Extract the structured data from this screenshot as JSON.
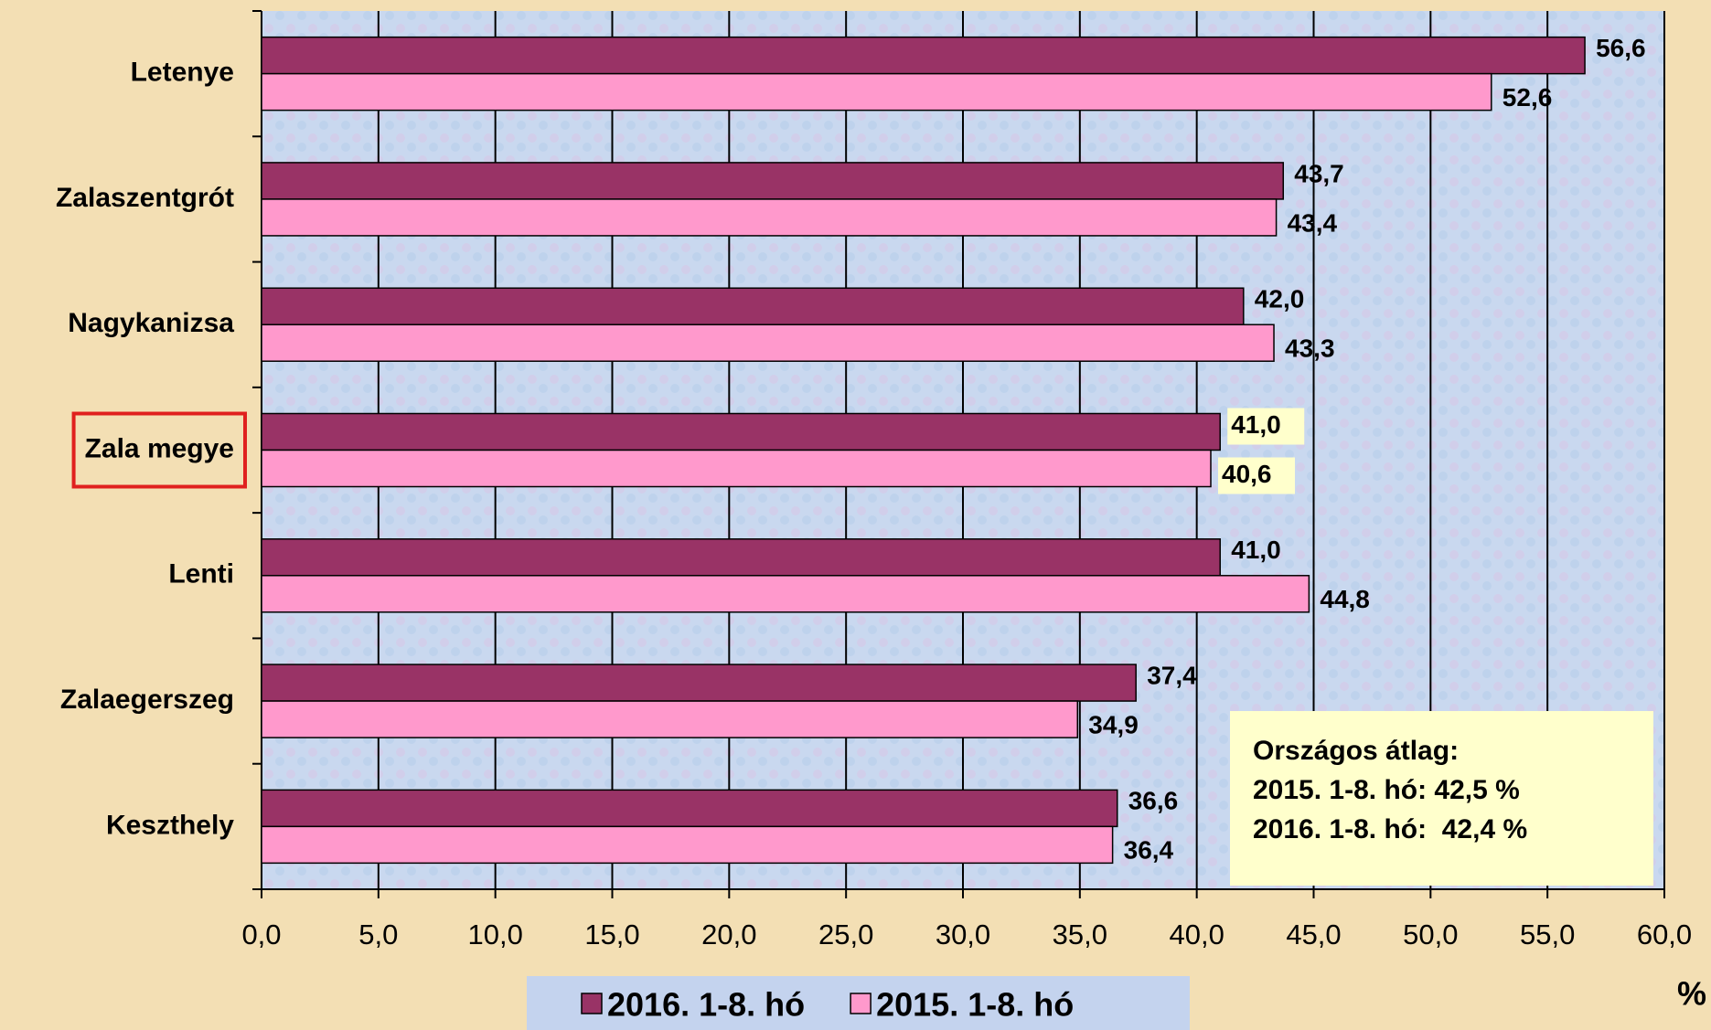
{
  "chart_data": {
    "type": "bar",
    "orientation": "horizontal",
    "categories": [
      "Letenye",
      "Zalaszentgrót",
      "Nagykanizsa",
      "Zala megye",
      "Lenti",
      "Zalaegerszeg",
      "Keszthely"
    ],
    "series": [
      {
        "name": "2016. 1-8. hó",
        "color": "#993366",
        "values": [
          56.6,
          43.7,
          42.0,
          41.0,
          41.0,
          37.4,
          36.6
        ],
        "value_labels": [
          "56,6",
          "43,7",
          "42,0",
          "41,0",
          "41,0",
          "37,4",
          "36,6"
        ]
      },
      {
        "name": "2015. 1-8. hó",
        "color": "#ff99cc",
        "values": [
          52.6,
          43.4,
          43.3,
          40.6,
          44.8,
          34.9,
          36.4
        ],
        "value_labels": [
          "52,6",
          "43,4",
          "43,3",
          "40,6",
          "44,8",
          "34,9",
          "36,4"
        ]
      }
    ],
    "xlabel": "%",
    "xlim": [
      0,
      60
    ],
    "xticks": [
      {
        "value": 0,
        "label": "0,0"
      },
      {
        "value": 5,
        "label": "5,0"
      },
      {
        "value": 10,
        "label": "10,0"
      },
      {
        "value": 15,
        "label": "15,0"
      },
      {
        "value": 20,
        "label": "20,0"
      },
      {
        "value": 25,
        "label": "25,0"
      },
      {
        "value": 30,
        "label": "30,0"
      },
      {
        "value": 35,
        "label": "35,0"
      },
      {
        "value": 40,
        "label": "40,0"
      },
      {
        "value": 45,
        "label": "45,0"
      },
      {
        "value": 50,
        "label": "50,0"
      },
      {
        "value": 55,
        "label": "55,0"
      },
      {
        "value": 60,
        "label": "60,0"
      }
    ],
    "grid": true,
    "legend": "bottom",
    "annotations": [
      "Országos átlag:",
      "2015. 1-8. hó: 42,5 %",
      "2016. 1-8. hó:  42,4 %"
    ]
  }
}
